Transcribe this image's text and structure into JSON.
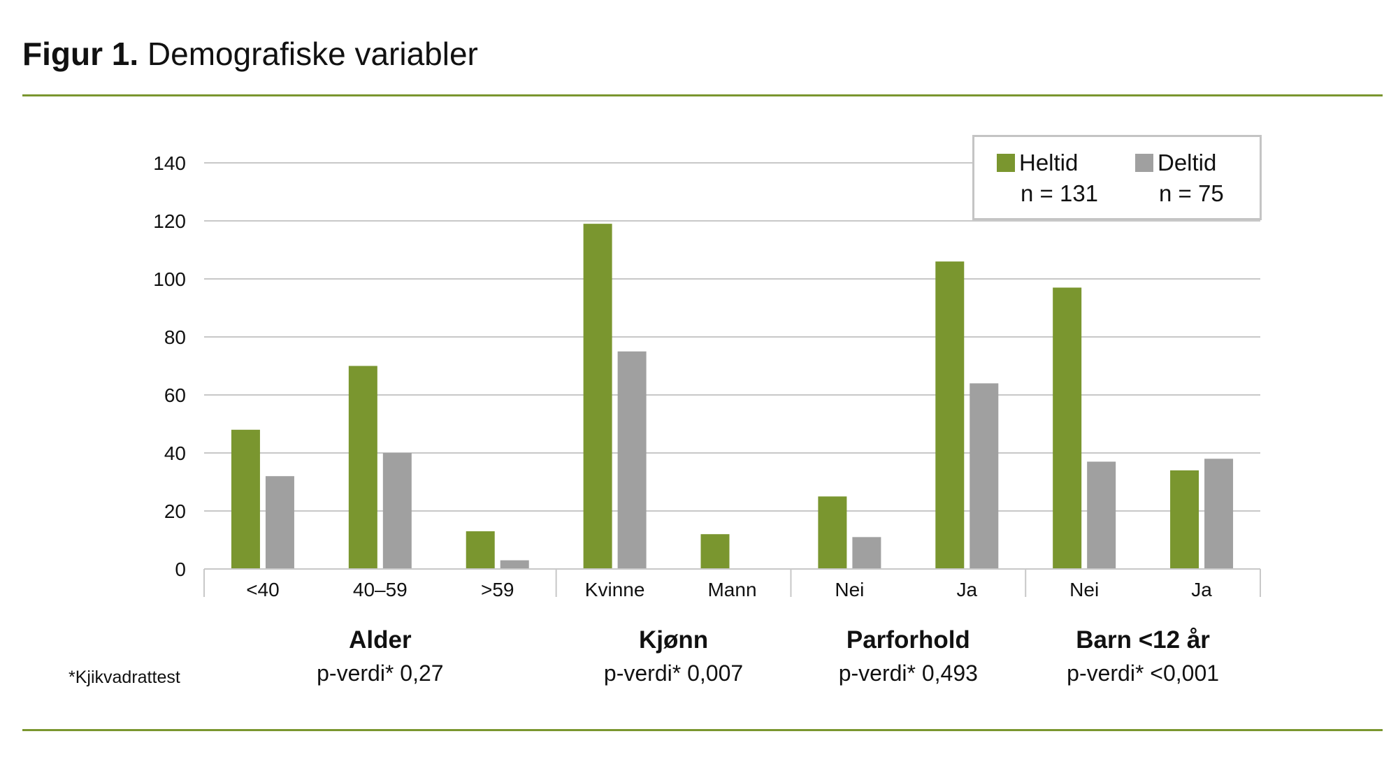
{
  "title": {
    "bold": "Figur 1.",
    "text": "Demografiske variabler"
  },
  "footnote": "*Kjikvadrattest",
  "chart_data": {
    "type": "bar",
    "categories": [
      "<40",
      "40–59",
      ">59",
      "Kvinne",
      "Mann",
      "Nei",
      "Ja",
      "Nei",
      "Ja"
    ],
    "groups": [
      {
        "name": "Alder",
        "pvalue": "p-verdi* 0,27",
        "span": 3
      },
      {
        "name": "Kjønn",
        "pvalue": "p-verdi* 0,007",
        "span": 2
      },
      {
        "name": "Parforhold",
        "pvalue": "p-verdi* 0,493",
        "span": 2
      },
      {
        "name": "Barn <12 år",
        "pvalue": "p-verdi* <0,001",
        "span": 2
      }
    ],
    "series": [
      {
        "name": "Heltid",
        "n_label": "n = 131",
        "color": "#7a962f",
        "values": [
          48,
          70,
          13,
          119,
          12,
          25,
          106,
          97,
          34
        ]
      },
      {
        "name": "Deltid",
        "n_label": "n = 75",
        "color": "#a0a0a0",
        "values": [
          32,
          40,
          3,
          75,
          0,
          11,
          64,
          37,
          38
        ]
      }
    ],
    "ylim": [
      0,
      140
    ],
    "yticks": [
      0,
      20,
      40,
      60,
      80,
      100,
      120,
      140
    ],
    "grid": true,
    "legend": "top-right"
  }
}
